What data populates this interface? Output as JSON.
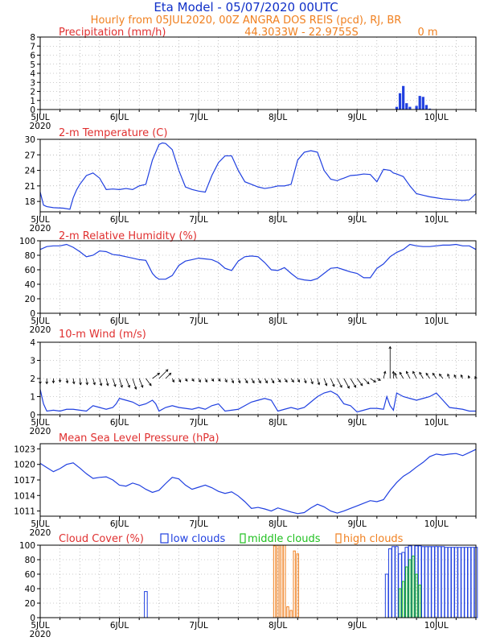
{
  "header": {
    "title": "Eta Model - 05/07/2020 00UTC",
    "subtitle": "Hourly from 05JUL2020, 00Z  ANGRA DOS REIS (pcd), RJ, BR",
    "coords": "44.3033W - 22.9755S",
    "elevation": "0   m",
    "title_color": "#1030c8",
    "subtitle_color": "#f08020"
  },
  "x_axis": {
    "tick_labels": [
      "5JUL",
      "6JUL",
      "7JUL",
      "8JUL",
      "9JUL",
      "10JUL"
    ],
    "year_label": "2020",
    "range_hours": [
      0,
      132
    ]
  },
  "colors": {
    "line": "#2040e0",
    "bar": "#2040e0",
    "title_red": "#e03030",
    "low_clouds": "#2040e0",
    "middle_clouds": "#20c020",
    "high_clouds": "#f08020",
    "wind_barb": "#000000"
  },
  "chart_data": [
    {
      "id": "precip",
      "type": "bar",
      "title": "Precipitation (mm/h)",
      "ylim": [
        0,
        8
      ],
      "yticks": [
        0,
        1,
        2,
        3,
        4,
        5,
        6,
        7,
        8
      ],
      "grid": true,
      "x_hours": [
        108,
        109,
        110,
        111,
        112,
        114,
        115,
        116,
        117,
        118
      ],
      "values": [
        0.3,
        1.8,
        2.6,
        0.7,
        0.3,
        0.4,
        1.5,
        1.4,
        0.5,
        0.1
      ]
    },
    {
      "id": "temp",
      "type": "line",
      "title": "2-m Temperature (C)",
      "ylim": [
        16,
        30
      ],
      "yticks": [
        18,
        21,
        24,
        27,
        30
      ],
      "grid": true,
      "x": [
        0,
        1,
        2,
        4,
        7,
        9,
        10,
        11,
        12,
        14,
        16,
        18,
        20,
        22,
        24,
        26,
        28,
        30,
        32,
        34,
        36,
        37,
        38,
        40,
        42,
        44,
        46,
        48,
        50,
        52,
        54,
        56,
        58,
        60,
        62,
        64,
        66,
        68,
        70,
        72,
        74,
        76,
        78,
        80,
        82,
        84,
        86,
        88,
        90,
        91,
        92,
        94,
        96,
        98,
        100,
        102,
        104,
        106,
        107,
        108,
        110,
        112,
        114,
        116,
        118,
        120,
        122,
        124,
        126,
        128,
        130,
        132
      ],
      "values": [
        19.8,
        17.3,
        17.0,
        16.8,
        16.7,
        16.5,
        18.7,
        20.2,
        21.3,
        23.0,
        23.5,
        22.5,
        20.3,
        20.4,
        20.3,
        20.5,
        20.3,
        21.0,
        21.3,
        26.0,
        29.0,
        29.3,
        29.2,
        28.0,
        24.0,
        20.8,
        20.3,
        20.0,
        19.8,
        23.0,
        25.5,
        26.8,
        26.8,
        24.0,
        21.8,
        21.3,
        20.8,
        20.5,
        20.7,
        21.0,
        21.0,
        21.3,
        26.0,
        27.5,
        27.8,
        27.5,
        24.0,
        22.3,
        22.0,
        22.3,
        22.5,
        23.0,
        23.1,
        23.3,
        23.2,
        21.8,
        24.2,
        24.0,
        23.5,
        23.3,
        22.8,
        21.0,
        19.5,
        19.2,
        18.9,
        18.7,
        18.5,
        18.4,
        18.3,
        18.2,
        18.3,
        19.5
      ]
    },
    {
      "id": "rh",
      "type": "line",
      "title": "2-m Relative Humidity (%)",
      "ylim": [
        0,
        100
      ],
      "yticks": [
        0,
        20,
        40,
        60,
        80,
        100
      ],
      "grid": true,
      "x": [
        0,
        2,
        4,
        6,
        8,
        10,
        12,
        14,
        16,
        18,
        20,
        22,
        24,
        26,
        28,
        30,
        32,
        34,
        35,
        36,
        38,
        40,
        42,
        44,
        46,
        48,
        50,
        52,
        54,
        56,
        58,
        60,
        62,
        64,
        66,
        68,
        70,
        72,
        74,
        76,
        78,
        80,
        82,
        84,
        86,
        88,
        90,
        92,
        94,
        96,
        98,
        100,
        102,
        104,
        106,
        108,
        110,
        112,
        114,
        116,
        118,
        120,
        122,
        124,
        126,
        128,
        130,
        132
      ],
      "values": [
        88,
        92,
        93,
        93,
        95,
        91,
        85,
        78,
        80,
        86,
        85,
        81,
        80,
        78,
        76,
        74,
        73,
        55,
        50,
        47,
        47,
        52,
        66,
        72,
        74,
        76,
        75,
        74,
        70,
        62,
        59,
        72,
        78,
        79,
        78,
        70,
        60,
        59,
        63,
        55,
        48,
        46,
        45,
        48,
        55,
        62,
        63,
        60,
        57,
        55,
        49,
        49,
        62,
        68,
        78,
        84,
        88,
        95,
        93,
        92,
        92,
        93,
        94,
        94,
        95,
        93,
        93,
        88
      ]
    },
    {
      "id": "wind",
      "type": "line",
      "title": "10-m Wind (m/s)",
      "ylim": [
        0,
        4
      ],
      "yticks": [
        0,
        1,
        2,
        3,
        4
      ],
      "grid": true,
      "barb_level": 2,
      "speed_x": [
        0,
        1,
        2,
        4,
        6,
        8,
        10,
        12,
        14,
        16,
        18,
        20,
        22,
        23,
        24,
        26,
        28,
        30,
        32,
        34,
        35,
        36,
        38,
        40,
        42,
        44,
        46,
        48,
        50,
        52,
        54,
        56,
        58,
        60,
        62,
        64,
        66,
        68,
        70,
        72,
        74,
        76,
        78,
        80,
        82,
        84,
        86,
        88,
        90,
        92,
        94,
        96,
        98,
        100,
        102,
        104,
        105,
        106,
        107,
        108,
        110,
        112,
        114,
        116,
        118,
        120,
        122,
        124,
        126,
        128,
        130,
        132
      ],
      "speed": [
        1.4,
        0.6,
        0.2,
        0.25,
        0.2,
        0.3,
        0.3,
        0.25,
        0.2,
        0.5,
        0.4,
        0.3,
        0.4,
        0.6,
        0.9,
        0.8,
        0.7,
        0.5,
        0.6,
        0.8,
        0.6,
        0.2,
        0.4,
        0.5,
        0.4,
        0.35,
        0.3,
        0.4,
        0.3,
        0.5,
        0.6,
        0.2,
        0.25,
        0.3,
        0.5,
        0.7,
        0.8,
        0.9,
        0.8,
        0.2,
        0.3,
        0.4,
        0.3,
        0.4,
        0.7,
        1.0,
        1.2,
        1.3,
        1.1,
        0.6,
        0.5,
        0.15,
        0.25,
        0.35,
        0.35,
        0.3,
        1.0,
        0.5,
        0.25,
        1.2,
        1.0,
        0.9,
        0.8,
        0.9,
        1.0,
        1.2,
        0.8,
        0.4,
        0.35,
        0.3,
        0.2,
        0.2
      ],
      "barb_x": [
        0,
        2,
        4,
        6,
        8,
        10,
        12,
        14,
        16,
        18,
        20,
        22,
        24,
        26,
        28,
        30,
        32,
        34,
        36,
        38,
        40,
        42,
        44,
        46,
        48,
        50,
        52,
        54,
        56,
        58,
        60,
        62,
        64,
        66,
        68,
        70,
        72,
        74,
        76,
        78,
        80,
        82,
        84,
        86,
        88,
        90,
        92,
        94,
        96,
        98,
        100,
        102,
        104,
        106,
        107,
        108,
        110,
        112,
        114,
        116,
        118,
        120,
        122,
        124,
        126,
        128,
        130,
        132
      ],
      "barb_u": [
        0,
        0,
        0,
        0,
        0.05,
        0.05,
        0.05,
        0.05,
        0.1,
        0.1,
        0.1,
        0.15,
        0.15,
        0.2,
        0.2,
        0.2,
        0.3,
        0.4,
        0.5,
        0.3,
        0.1,
        0.1,
        0.1,
        0.1,
        0.1,
        0.1,
        0.1,
        0.1,
        0.1,
        0.1,
        0.1,
        0.15,
        0.15,
        0.15,
        0.15,
        0.15,
        0.15,
        0.15,
        0.15,
        0.1,
        0.1,
        0.1,
        0.1,
        0.15,
        0.2,
        0.25,
        0.3,
        0.3,
        0.3,
        0.3,
        0.3,
        0.2,
        0.1,
        0.0,
        0.0,
        -0.1,
        -0.2,
        -0.2,
        -0.2,
        -0.2,
        -0.2,
        -0.2,
        -0.2,
        -0.1,
        -0.1,
        -0.1,
        -0.05,
        -0.05
      ],
      "barb_v": [
        -0.3,
        -0.3,
        -0.25,
        -0.2,
        -0.25,
        -0.3,
        -0.35,
        -0.35,
        -0.35,
        -0.4,
        -0.4,
        -0.45,
        -0.5,
        -0.5,
        -0.6,
        -0.5,
        -0.4,
        0.3,
        0.5,
        0.3,
        -0.2,
        -0.2,
        -0.15,
        -0.15,
        -0.2,
        -0.2,
        -0.15,
        -0.15,
        -0.2,
        -0.25,
        -0.25,
        -0.25,
        -0.25,
        -0.25,
        -0.25,
        -0.25,
        -0.2,
        -0.2,
        -0.2,
        -0.2,
        -0.25,
        -0.3,
        -0.35,
        -0.4,
        -0.45,
        -0.5,
        -0.55,
        -0.5,
        -0.4,
        -0.3,
        -0.2,
        -0.1,
        0.4,
        1.8,
        0.4,
        0.3,
        0.35,
        0.4,
        0.4,
        0.35,
        0.3,
        0.3,
        0.25,
        0.25,
        0.2,
        0.2,
        0.15,
        0.1
      ]
    },
    {
      "id": "mslp",
      "type": "line",
      "title": "Mean Sea Level Pressure (hPa)",
      "ylim": [
        1010,
        1024
      ],
      "yticks": [
        1011,
        1014,
        1017,
        1020,
        1023
      ],
      "grid": false,
      "x": [
        0,
        2,
        4,
        6,
        8,
        10,
        12,
        14,
        16,
        18,
        20,
        22,
        24,
        26,
        28,
        30,
        32,
        34,
        36,
        38,
        40,
        42,
        44,
        46,
        48,
        50,
        52,
        54,
        56,
        58,
        60,
        62,
        64,
        66,
        68,
        70,
        72,
        74,
        76,
        78,
        80,
        82,
        84,
        86,
        88,
        90,
        92,
        94,
        96,
        98,
        100,
        102,
        104,
        106,
        108,
        110,
        112,
        114,
        116,
        118,
        120,
        122,
        124,
        126,
        128,
        130,
        132
      ],
      "values": [
        1020.2,
        1019.4,
        1018.6,
        1019.2,
        1020.0,
        1020.3,
        1019.3,
        1018.2,
        1017.3,
        1017.5,
        1017.6,
        1017.0,
        1016.0,
        1015.8,
        1016.4,
        1016.0,
        1015.2,
        1014.6,
        1015.0,
        1016.3,
        1017.5,
        1017.2,
        1016.0,
        1015.2,
        1015.6,
        1016.0,
        1015.5,
        1014.8,
        1014.4,
        1014.7,
        1013.9,
        1012.8,
        1011.5,
        1011.7,
        1011.4,
        1011.0,
        1011.6,
        1011.2,
        1010.8,
        1010.5,
        1010.7,
        1011.6,
        1012.3,
        1011.8,
        1011.0,
        1010.6,
        1011.0,
        1011.5,
        1012.0,
        1012.5,
        1013.0,
        1012.8,
        1013.2,
        1015.0,
        1016.5,
        1017.7,
        1018.5,
        1019.5,
        1020.4,
        1021.5,
        1022.0,
        1021.8,
        1022.0,
        1022.1,
        1021.7,
        1022.3,
        1022.9
      ]
    },
    {
      "id": "cloud",
      "type": "bar",
      "title": "Cloud Cover (%)",
      "legend": [
        "low clouds",
        "middle clouds",
        "high clouds"
      ],
      "ylim": [
        0,
        100
      ],
      "yticks": [
        0,
        20,
        40,
        60,
        80,
        100
      ],
      "grid": true,
      "low": {
        "x": [
          32,
          105,
          106,
          107,
          108,
          109,
          110,
          111,
          112,
          113,
          114,
          115,
          116,
          117,
          118,
          119,
          120,
          121,
          122,
          123,
          124,
          125,
          126,
          127,
          128,
          129,
          130,
          131,
          132
        ],
        "values": [
          36,
          60,
          95,
          98,
          98,
          88,
          90,
          97,
          99,
          100,
          99,
          99,
          98,
          98,
          98,
          98,
          98,
          98,
          98,
          97,
          97,
          97,
          97,
          97,
          97,
          97,
          97,
          97,
          97
        ]
      },
      "middle": {
        "x": [
          109,
          110,
          111,
          112,
          113,
          114,
          115
        ],
        "values": [
          40,
          50,
          70,
          80,
          85,
          60,
          45
        ]
      },
      "high": {
        "x": [
          71,
          72,
          73,
          74,
          75,
          76,
          77,
          78
        ],
        "values": [
          99,
          100,
          100,
          100,
          15,
          10,
          92,
          88
        ]
      }
    }
  ]
}
